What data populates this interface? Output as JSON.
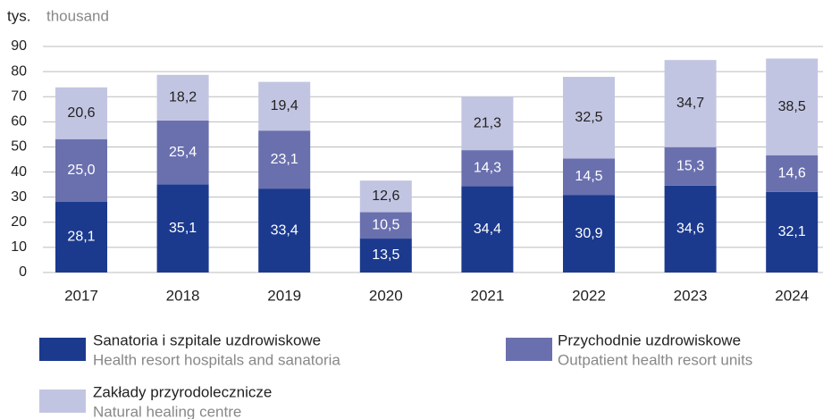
{
  "chart_data": {
    "type": "stacked_bar",
    "unit_label": "tys.",
    "unit_label_en": "thousand",
    "categories": [
      "2017",
      "2018",
      "2019",
      "2020",
      "2021",
      "2022",
      "2023",
      "2024"
    ],
    "series": [
      {
        "name": "Sanatoria i szpitale uzdrowiskowe",
        "name_en": "Health resort hospitals and sanatoria",
        "color": "#1b3a8e",
        "values": [
          28.1,
          35.1,
          33.4,
          13.5,
          34.4,
          30.9,
          34.6,
          32.1
        ],
        "value_labels": [
          "28,1",
          "35,1",
          "33,4",
          "13,5",
          "34,4",
          "30,9",
          "34,6",
          "32,1"
        ]
      },
      {
        "name": "Przychodnie uzdrowiskowe",
        "name_en": "Outpatient health resort units",
        "color": "#6a70ae",
        "values": [
          25.0,
          25.4,
          23.1,
          10.5,
          14.3,
          14.5,
          15.3,
          14.6
        ],
        "value_labels": [
          "25,0",
          "25,4",
          "23,1",
          "10,5",
          "14,3",
          "14,5",
          "15,3",
          "14,6"
        ]
      },
      {
        "name": "Zakłady przyrodolecznicze",
        "name_en": "Natural healing centre",
        "color": "#c2c5e2",
        "values": [
          20.6,
          18.2,
          19.4,
          12.6,
          21.3,
          32.5,
          34.7,
          38.5
        ],
        "value_labels": [
          "20,6",
          "18,2",
          "19,4",
          "12,6",
          "21,3",
          "32,5",
          "34,7",
          "38,5"
        ]
      }
    ],
    "ylim": [
      0,
      90
    ],
    "yticks": [
      0,
      10,
      20,
      30,
      40,
      50,
      60,
      70,
      80,
      90
    ],
    "grid": true
  }
}
